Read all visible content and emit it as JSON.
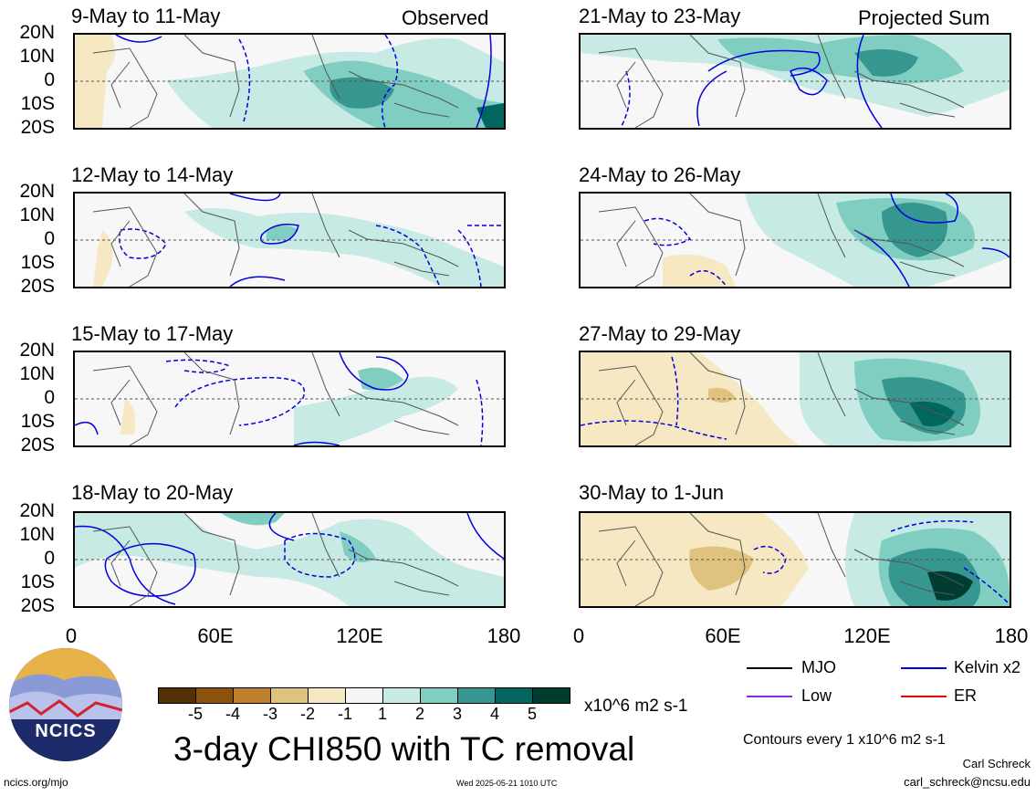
{
  "panels": [
    {
      "title": "9-May to 11-May",
      "tag": "Observed"
    },
    {
      "title": "12-May to 14-May",
      "tag": ""
    },
    {
      "title": "15-May to 17-May",
      "tag": ""
    },
    {
      "title": "18-May to 20-May",
      "tag": ""
    },
    {
      "title": "21-May to 23-May",
      "tag": "Projected Sum"
    },
    {
      "title": "24-May to 26-May",
      "tag": ""
    },
    {
      "title": "27-May to 29-May",
      "tag": ""
    },
    {
      "title": "30-May to 1-Jun",
      "tag": ""
    }
  ],
  "lat_labels": [
    "20N",
    "10N",
    "0",
    "10S",
    "20S"
  ],
  "lon_labels": [
    "0",
    "60E",
    "120E",
    "180"
  ],
  "colorbar": {
    "labels": [
      "-5",
      "-4",
      "-3",
      "-2",
      "-1",
      "1",
      "2",
      "3",
      "4",
      "5"
    ],
    "colors": [
      "#543005",
      "#8c510a",
      "#bf812d",
      "#dfc27d",
      "#f6e8c3",
      "#f5f5f5",
      "#c7eae5",
      "#80cdc1",
      "#35978f",
      "#01665e",
      "#003c30"
    ],
    "units": "x10^6 m2 s-1"
  },
  "main_title": "3-day CHI850 with TC removal",
  "legend": [
    {
      "label": "MJO",
      "color": "#000000"
    },
    {
      "label": "Kelvin x2",
      "color": "#0000dd"
    },
    {
      "label": "Low",
      "color": "#8a2be2"
    },
    {
      "label": "ER",
      "color": "#ee0000"
    }
  ],
  "contour_note": "Contours every 1 x10^6 m2 s-1",
  "author": "Carl Schreck",
  "email": "carl_schreck@ncsu.edu",
  "site": "ncics.org/mjo",
  "timestamp": "Wed 2025-05-21 1010 UTC",
  "logo_text": "NCICS"
}
